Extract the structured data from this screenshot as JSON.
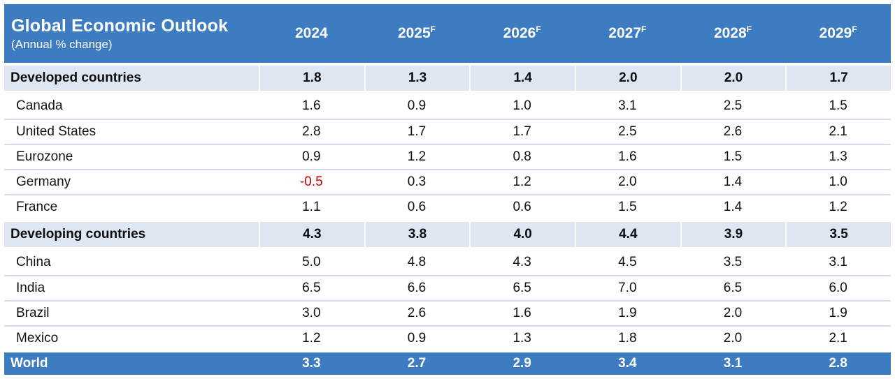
{
  "table": {
    "title": "Global Economic Outlook",
    "subtitle": "(Annual % change)",
    "forecast_marker": "F",
    "columns": [
      {
        "label": "2024",
        "forecast": false
      },
      {
        "label": "2025",
        "forecast": true
      },
      {
        "label": "2026",
        "forecast": true
      },
      {
        "label": "2027",
        "forecast": true
      },
      {
        "label": "2028",
        "forecast": true
      },
      {
        "label": "2029",
        "forecast": true
      }
    ],
    "rows": [
      {
        "label": "Developed countries",
        "type": "section",
        "values": [
          "1.8",
          "1.3",
          "1.4",
          "2.0",
          "2.0",
          "1.7"
        ]
      },
      {
        "label": "Canada",
        "type": "data",
        "values": [
          "1.6",
          "0.9",
          "1.0",
          "3.1",
          "2.5",
          "1.5"
        ]
      },
      {
        "label": "United States",
        "type": "data",
        "values": [
          "2.8",
          "1.7",
          "1.7",
          "2.5",
          "2.6",
          "2.1"
        ]
      },
      {
        "label": "Eurozone",
        "type": "data",
        "values": [
          "0.9",
          "1.2",
          "0.8",
          "1.6",
          "1.5",
          "1.3"
        ]
      },
      {
        "label": "Germany",
        "type": "data",
        "values": [
          "-0.5",
          "0.3",
          "1.2",
          "2.0",
          "1.4",
          "1.0"
        ]
      },
      {
        "label": "France",
        "type": "data",
        "values": [
          "1.1",
          "0.6",
          "0.6",
          "1.5",
          "1.4",
          "1.2"
        ]
      },
      {
        "label": "Developing countries",
        "type": "section",
        "values": [
          "4.3",
          "3.8",
          "4.0",
          "4.4",
          "3.9",
          "3.5"
        ]
      },
      {
        "label": "China",
        "type": "data",
        "values": [
          "5.0",
          "4.8",
          "4.3",
          "4.5",
          "3.5",
          "3.1"
        ]
      },
      {
        "label": "India",
        "type": "data",
        "values": [
          "6.5",
          "6.6",
          "6.5",
          "7.0",
          "6.5",
          "6.0"
        ]
      },
      {
        "label": "Brazil",
        "type": "data",
        "values": [
          "3.0",
          "2.6",
          "1.6",
          "1.9",
          "2.0",
          "1.9"
        ]
      },
      {
        "label": "Mexico",
        "type": "data",
        "values": [
          "1.2",
          "0.9",
          "1.3",
          "1.8",
          "2.0",
          "2.1"
        ]
      },
      {
        "label": "World",
        "type": "world",
        "values": [
          "3.3",
          "2.7",
          "2.9",
          "3.4",
          "3.1",
          "2.8"
        ]
      }
    ],
    "colors": {
      "header_blue": "#3e7cc1",
      "section_row_bg": "#dde6f1",
      "row_divider": "#d2dcea",
      "negative_value": "#c00000",
      "header_text": "#ffffff",
      "body_text": "#111111"
    }
  },
  "chart_data": {
    "type": "table",
    "title": "Global Economic Outlook",
    "subtitle": "(Annual % change)",
    "categories": [
      "2024",
      "2025F",
      "2026F",
      "2027F",
      "2028F",
      "2029F"
    ],
    "series": [
      {
        "name": "Developed countries",
        "values": [
          1.8,
          1.3,
          1.4,
          2.0,
          2.0,
          1.7
        ]
      },
      {
        "name": "Canada",
        "values": [
          1.6,
          0.9,
          1.0,
          3.1,
          2.5,
          1.5
        ]
      },
      {
        "name": "United States",
        "values": [
          2.8,
          1.7,
          1.7,
          2.5,
          2.6,
          2.1
        ]
      },
      {
        "name": "Eurozone",
        "values": [
          0.9,
          1.2,
          0.8,
          1.6,
          1.5,
          1.3
        ]
      },
      {
        "name": "Germany",
        "values": [
          -0.5,
          0.3,
          1.2,
          2.0,
          1.4,
          1.0
        ]
      },
      {
        "name": "France",
        "values": [
          1.1,
          0.6,
          0.6,
          1.5,
          1.4,
          1.2
        ]
      },
      {
        "name": "Developing countries",
        "values": [
          4.3,
          3.8,
          4.0,
          4.4,
          3.9,
          3.5
        ]
      },
      {
        "name": "China",
        "values": [
          5.0,
          4.8,
          4.3,
          4.5,
          3.5,
          3.1
        ]
      },
      {
        "name": "India",
        "values": [
          6.5,
          6.6,
          6.5,
          7.0,
          6.5,
          6.0
        ]
      },
      {
        "name": "Brazil",
        "values": [
          3.0,
          2.6,
          1.6,
          1.9,
          2.0,
          1.9
        ]
      },
      {
        "name": "Mexico",
        "values": [
          1.2,
          0.9,
          1.3,
          1.8,
          2.0,
          2.1
        ]
      },
      {
        "name": "World",
        "values": [
          3.3,
          2.7,
          2.9,
          3.4,
          3.1,
          2.8
        ]
      }
    ]
  }
}
